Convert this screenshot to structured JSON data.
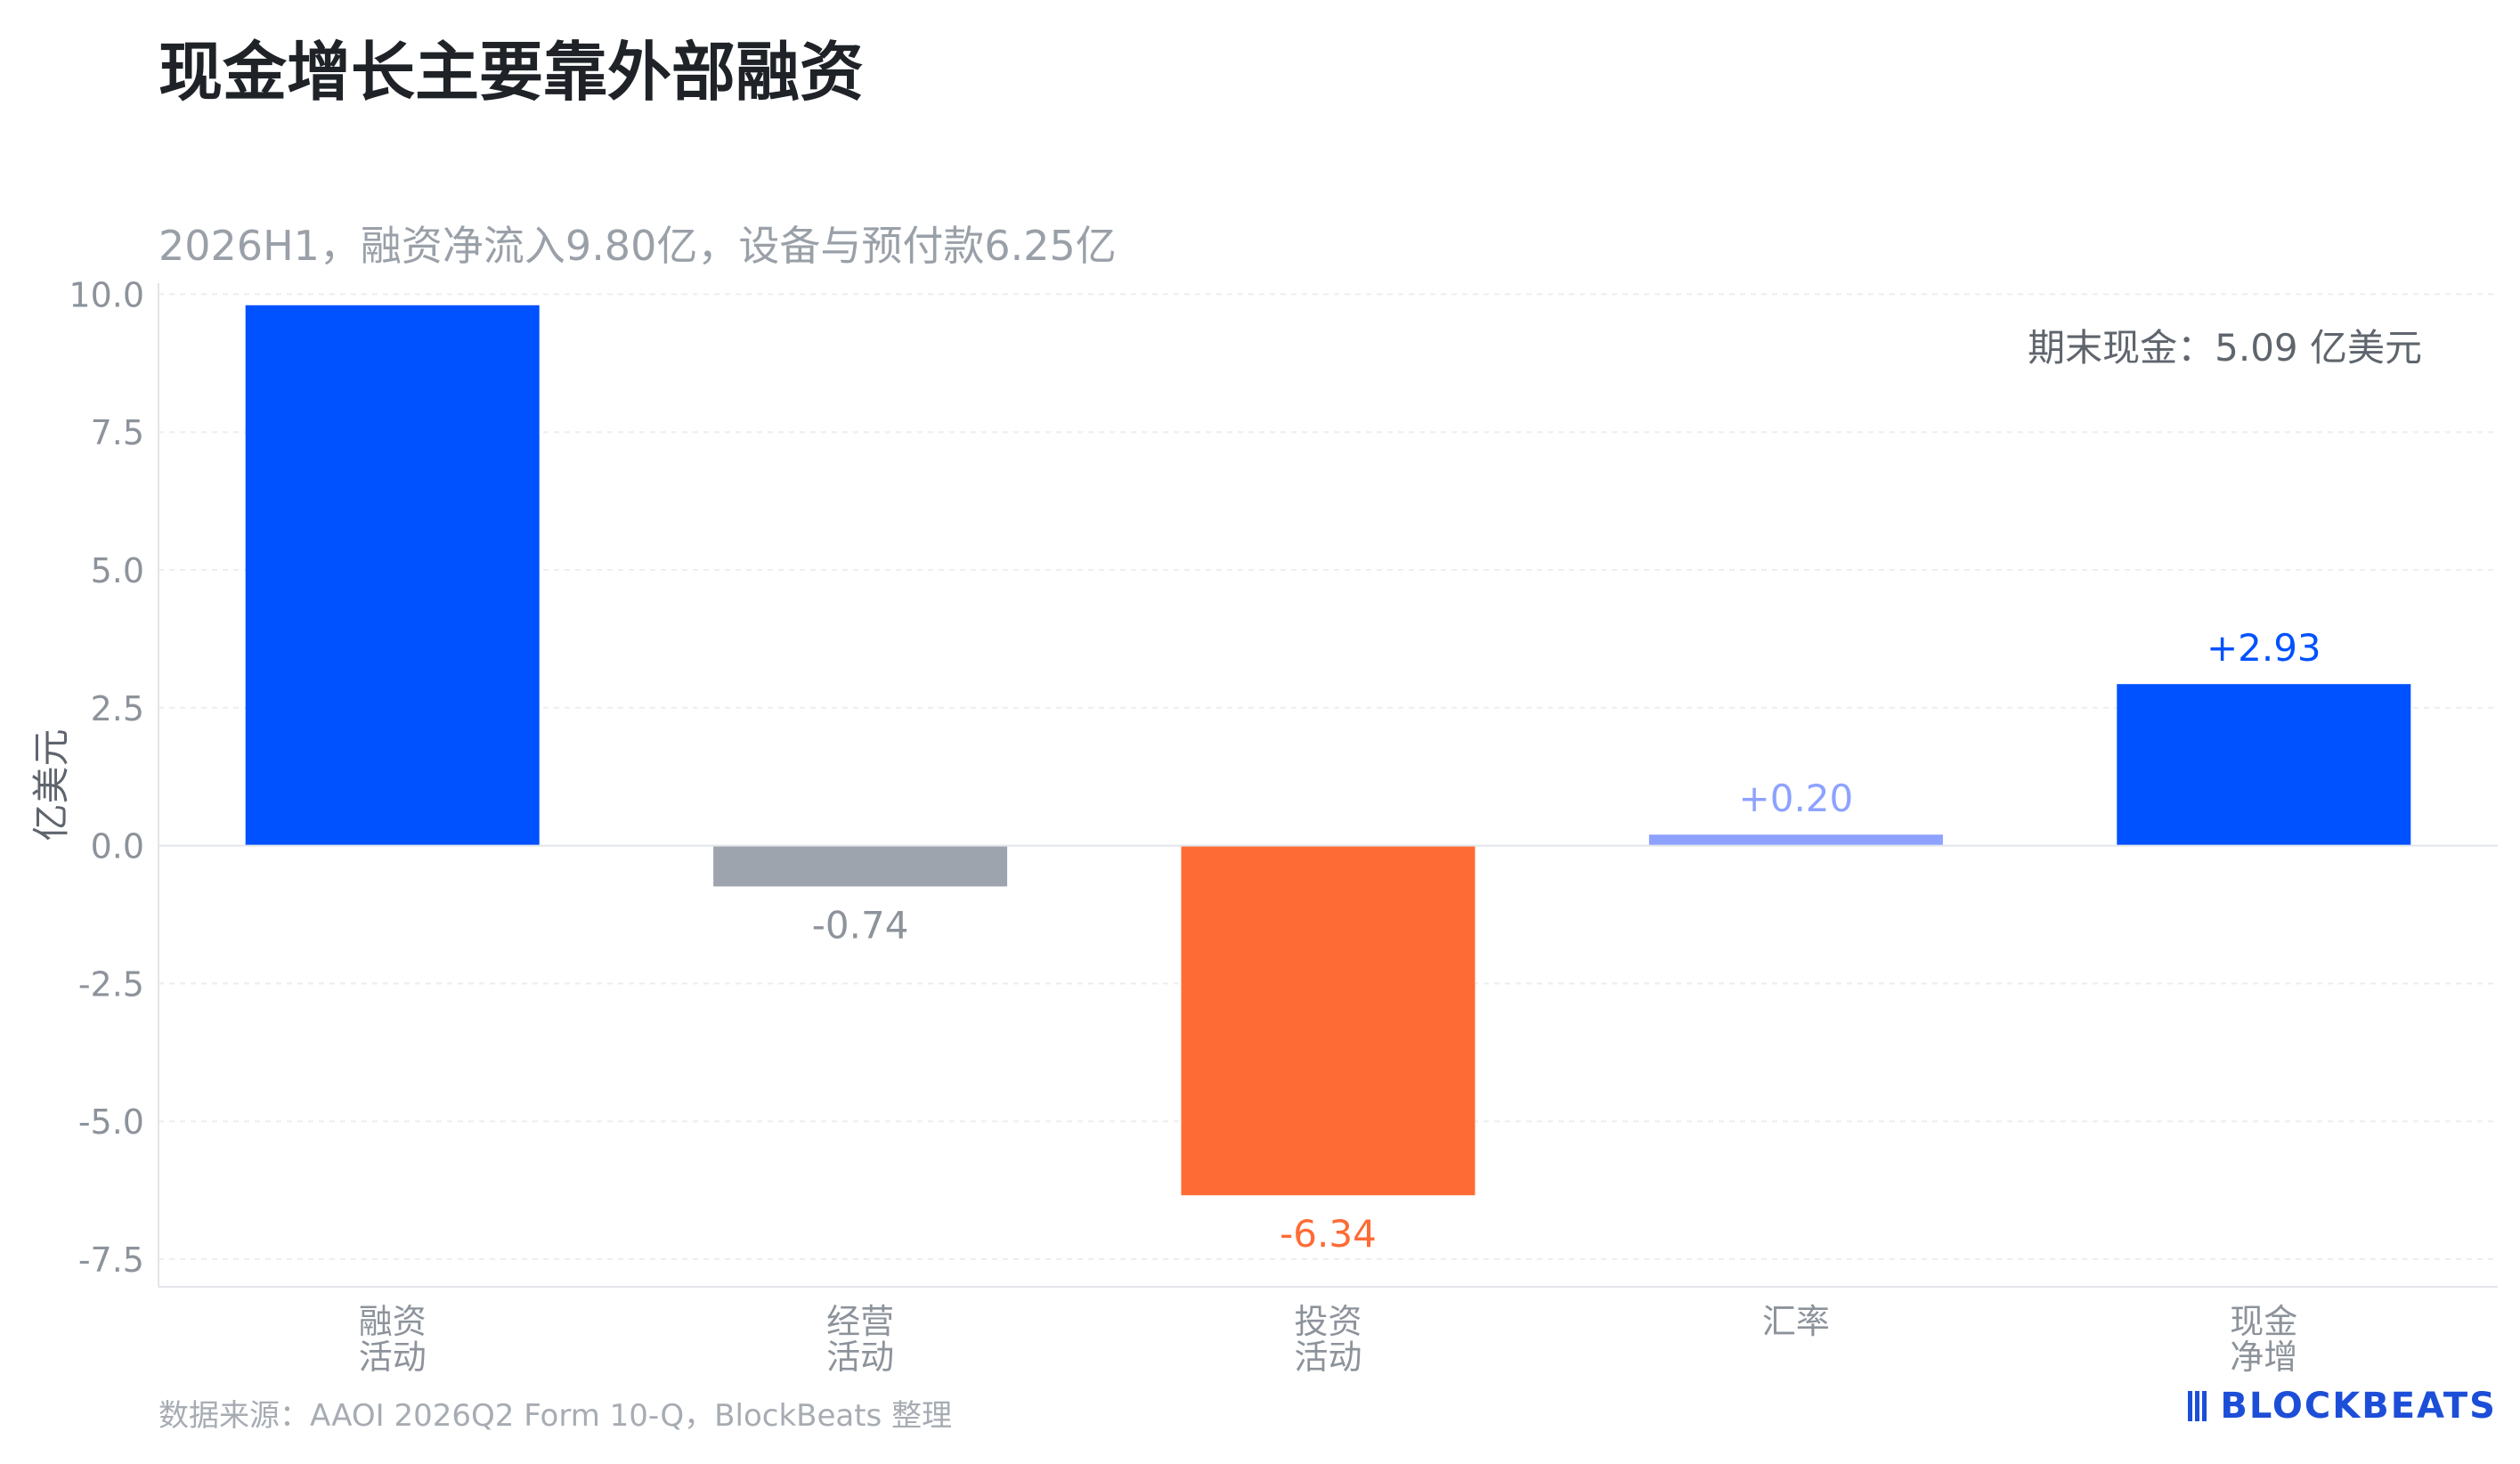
{
  "title": "现金增长主要靠外部融资",
  "subtitle": "2026H1，融资净流入9.80亿，设备与预付款6.25亿",
  "source": "数据来源：AAOI 2026Q2 Form 10-Q，BlockBeats 整理",
  "brand": {
    "text": "BLOCKBEATS",
    "icon": "blockbeats-logo-icon",
    "color": "#1d4ed8"
  },
  "chart_data": {
    "type": "bar",
    "ylabel": "亿美元",
    "ylim": [
      -8.0,
      10.2
    ],
    "yticks": [
      10.0,
      7.5,
      5.0,
      2.5,
      0.0,
      -2.5,
      -5.0,
      -7.5
    ],
    "ytick_labels": [
      "10.0",
      "7.5",
      "5.0",
      "2.5",
      "0.0",
      "-2.5",
      "-5.0",
      "-7.5"
    ],
    "grid": true,
    "annotation": "期末现金：5.09 亿美元",
    "categories": [
      {
        "lines": [
          "融资",
          "活动"
        ]
      },
      {
        "lines": [
          "经营",
          "活动"
        ]
      },
      {
        "lines": [
          "投资",
          "活动"
        ]
      },
      {
        "lines": [
          "汇率"
        ]
      },
      {
        "lines": [
          "现金",
          "净增"
        ]
      }
    ],
    "values": [
      9.8,
      -0.74,
      -6.34,
      0.2,
      2.93
    ],
    "data_labels": [
      "",
      "-0.74",
      "-6.34",
      "+0.20",
      "+2.93"
    ],
    "colors": [
      "#0051ff",
      "#9ea4ad",
      "#ff6b35",
      "#8da2ff",
      "#0051ff"
    ],
    "label_colors": [
      "#0051ff",
      "#8d939b",
      "#ff6b35",
      "#8da2ff",
      "#0051ff"
    ]
  }
}
